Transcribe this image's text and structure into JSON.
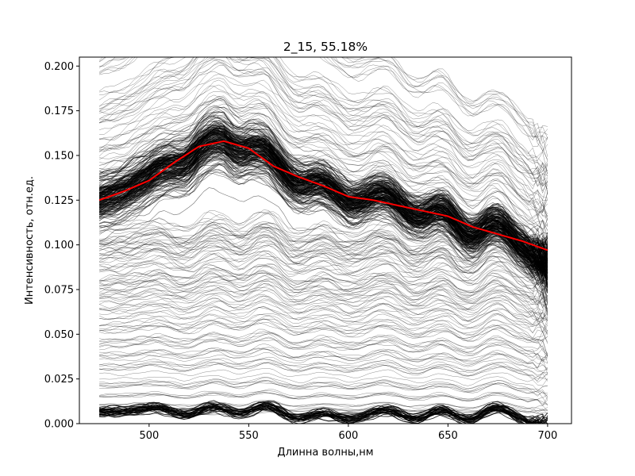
{
  "chart_data": {
    "type": "line",
    "title": "2_15, 55.18%",
    "xlabel": "Длинна волны,нм",
    "ylabel": "Интенсивность, отн.ед.",
    "xlim": [
      465,
      712
    ],
    "ylim": [
      0.0,
      0.205
    ],
    "xticks": [
      {
        "value": 500,
        "label": "500"
      },
      {
        "value": 550,
        "label": "550"
      },
      {
        "value": 600,
        "label": "600"
      },
      {
        "value": 650,
        "label": "650"
      },
      {
        "value": 700,
        "label": "700"
      }
    ],
    "yticks": [
      {
        "value": 0.0,
        "label": "0.000"
      },
      {
        "value": 0.025,
        "label": "0.025"
      },
      {
        "value": 0.05,
        "label": "0.050"
      },
      {
        "value": 0.075,
        "label": "0.075"
      },
      {
        "value": 0.1,
        "label": "0.100"
      },
      {
        "value": 0.125,
        "label": "0.125"
      },
      {
        "value": 0.15,
        "label": "0.150"
      },
      {
        "value": 0.175,
        "label": "0.175"
      },
      {
        "value": 0.2,
        "label": "0.200"
      }
    ],
    "grid": false,
    "legend": "none",
    "spectra_color": "#000000",
    "mean_color": "#ff0000",
    "mean_series": {
      "x": [
        475,
        487.5,
        500,
        512.5,
        525,
        537.5,
        550,
        562.5,
        575,
        587.5,
        600,
        612.5,
        625,
        637.5,
        650,
        662.5,
        675,
        687.5,
        700
      ],
      "y": [
        0.125,
        0.13,
        0.136,
        0.146,
        0.155,
        0.158,
        0.154,
        0.144,
        0.138,
        0.133,
        0.127,
        0.125,
        0.122,
        0.119,
        0.116,
        0.11,
        0.106,
        0.102,
        0.097
      ]
    }
  }
}
